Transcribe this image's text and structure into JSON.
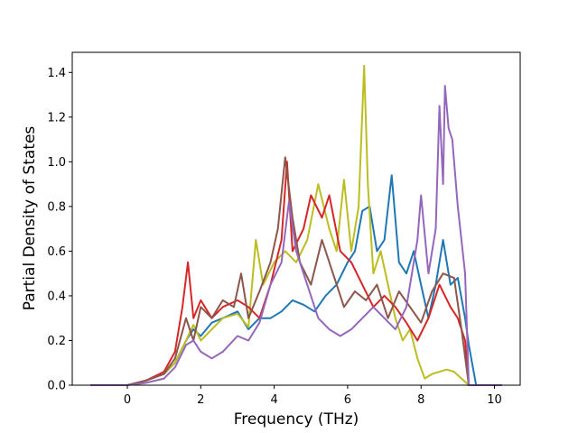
{
  "chart_data": {
    "type": "line",
    "title": "",
    "xlabel": "Frequency (THz)",
    "ylabel": "Partial Density of States",
    "xlim": [
      -1.5,
      10.7
    ],
    "ylim": [
      0.0,
      1.49
    ],
    "x_ticks": [
      0,
      2,
      4,
      6,
      8,
      10
    ],
    "y_ticks": [
      0.0,
      0.2,
      0.4,
      0.6,
      0.8,
      1.0,
      1.2,
      1.4
    ],
    "x_tick_labels": [
      "0",
      "2",
      "4",
      "6",
      "8",
      "10"
    ],
    "y_tick_labels": [
      "0.0",
      "0.2",
      "0.4",
      "0.6",
      "0.8",
      "1.0",
      "1.2",
      "1.4"
    ],
    "grid": false,
    "legend": "none",
    "series": [
      {
        "color": "#1f77b4",
        "x": [
          -1.0,
          0.0,
          0.5,
          1.0,
          1.3,
          1.6,
          1.8,
          2.0,
          2.3,
          2.6,
          3.0,
          3.3,
          3.6,
          3.9,
          4.2,
          4.5,
          4.8,
          5.1,
          5.4,
          5.7,
          6.0,
          6.2,
          6.4,
          6.6,
          6.8,
          7.0,
          7.2,
          7.4,
          7.6,
          7.8,
          8.0,
          8.2,
          8.4,
          8.6,
          8.8,
          9.0,
          9.2,
          9.3,
          9.5,
          10.2
        ],
        "y": [
          0.0,
          0.0,
          0.02,
          0.05,
          0.1,
          0.2,
          0.25,
          0.22,
          0.28,
          0.3,
          0.33,
          0.25,
          0.3,
          0.3,
          0.33,
          0.38,
          0.36,
          0.33,
          0.4,
          0.45,
          0.55,
          0.6,
          0.78,
          0.8,
          0.6,
          0.65,
          0.94,
          0.55,
          0.5,
          0.6,
          0.45,
          0.3,
          0.45,
          0.65,
          0.45,
          0.48,
          0.3,
          0.18,
          0.0,
          0.0
        ]
      },
      {
        "color": "#bcbd22",
        "x": [
          -1.0,
          0.0,
          0.5,
          1.0,
          1.3,
          1.6,
          1.8,
          2.0,
          2.3,
          2.6,
          3.0,
          3.3,
          3.5,
          3.7,
          4.0,
          4.3,
          4.6,
          4.9,
          5.2,
          5.5,
          5.7,
          5.9,
          6.1,
          6.3,
          6.45,
          6.55,
          6.7,
          6.9,
          7.1,
          7.3,
          7.5,
          7.7,
          7.9,
          8.1,
          8.3,
          8.5,
          8.7,
          8.9,
          9.1,
          9.3,
          10.2
        ],
        "y": [
          0.0,
          0.0,
          0.02,
          0.05,
          0.1,
          0.2,
          0.27,
          0.2,
          0.25,
          0.3,
          0.32,
          0.26,
          0.65,
          0.45,
          0.55,
          0.6,
          0.55,
          0.65,
          0.9,
          0.7,
          0.6,
          0.92,
          0.6,
          0.8,
          1.43,
          0.9,
          0.5,
          0.6,
          0.45,
          0.3,
          0.2,
          0.25,
          0.12,
          0.03,
          0.05,
          0.06,
          0.07,
          0.06,
          0.03,
          0.0,
          0.0
        ]
      },
      {
        "color": "#d62728",
        "x": [
          -1.0,
          0.0,
          0.5,
          1.0,
          1.3,
          1.5,
          1.65,
          1.8,
          2.0,
          2.3,
          2.6,
          3.0,
          3.3,
          3.6,
          3.9,
          4.2,
          4.35,
          4.5,
          4.8,
          5.0,
          5.3,
          5.5,
          5.8,
          6.1,
          6.4,
          6.7,
          7.0,
          7.3,
          7.6,
          7.9,
          8.2,
          8.5,
          8.8,
          9.0,
          9.2,
          9.3,
          10.2
        ],
        "y": [
          0.0,
          0.0,
          0.02,
          0.06,
          0.15,
          0.35,
          0.55,
          0.3,
          0.38,
          0.3,
          0.35,
          0.38,
          0.35,
          0.3,
          0.45,
          0.65,
          1.0,
          0.6,
          0.7,
          0.85,
          0.75,
          0.85,
          0.6,
          0.55,
          0.45,
          0.35,
          0.4,
          0.35,
          0.28,
          0.2,
          0.3,
          0.45,
          0.35,
          0.3,
          0.2,
          0.0,
          0.0
        ]
      },
      {
        "color": "#8c564b",
        "x": [
          -1.0,
          0.0,
          0.5,
          1.0,
          1.3,
          1.6,
          1.8,
          2.0,
          2.3,
          2.6,
          2.9,
          3.1,
          3.3,
          3.6,
          3.9,
          4.1,
          4.3,
          4.5,
          4.7,
          5.0,
          5.3,
          5.6,
          5.9,
          6.2,
          6.5,
          6.8,
          7.1,
          7.4,
          7.7,
          8.0,
          8.3,
          8.6,
          8.9,
          9.1,
          9.3,
          10.2
        ],
        "y": [
          0.0,
          0.0,
          0.02,
          0.05,
          0.12,
          0.3,
          0.2,
          0.35,
          0.3,
          0.38,
          0.35,
          0.5,
          0.3,
          0.42,
          0.55,
          0.7,
          1.02,
          0.75,
          0.55,
          0.45,
          0.65,
          0.5,
          0.35,
          0.42,
          0.38,
          0.45,
          0.3,
          0.42,
          0.35,
          0.28,
          0.42,
          0.5,
          0.48,
          0.25,
          0.0,
          0.0
        ]
      },
      {
        "color": "#9467bd",
        "x": [
          -1.0,
          0.0,
          0.5,
          1.0,
          1.3,
          1.6,
          1.8,
          2.0,
          2.3,
          2.6,
          3.0,
          3.3,
          3.6,
          3.9,
          4.2,
          4.4,
          4.6,
          4.9,
          5.2,
          5.5,
          5.8,
          6.1,
          6.4,
          6.7,
          7.0,
          7.3,
          7.6,
          7.9,
          8.0,
          8.2,
          8.4,
          8.5,
          8.6,
          8.65,
          8.75,
          8.85,
          9.0,
          9.2,
          9.3,
          10.2
        ],
        "y": [
          0.0,
          0.0,
          0.01,
          0.03,
          0.08,
          0.18,
          0.2,
          0.15,
          0.12,
          0.15,
          0.22,
          0.2,
          0.28,
          0.45,
          0.55,
          0.82,
          0.6,
          0.45,
          0.3,
          0.25,
          0.22,
          0.25,
          0.3,
          0.35,
          0.3,
          0.25,
          0.35,
          0.65,
          0.85,
          0.5,
          0.7,
          1.25,
          0.9,
          1.34,
          1.15,
          1.1,
          0.8,
          0.5,
          0.0,
          0.0
        ]
      }
    ]
  }
}
